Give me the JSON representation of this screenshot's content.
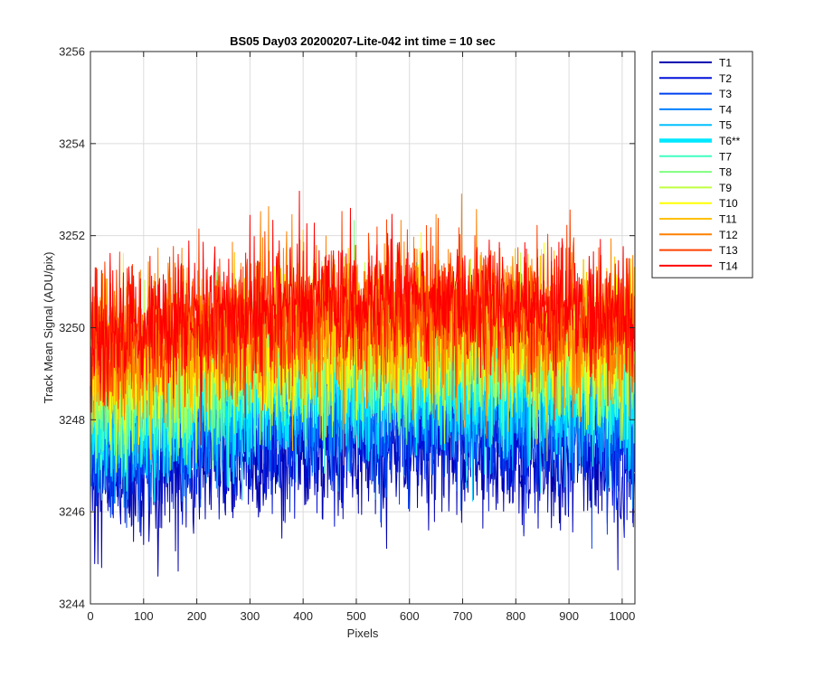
{
  "chart_data": {
    "type": "line",
    "title": "BS05 Day03 20200207-Lite-042 int time = 10 sec",
    "xlabel": "Pixels",
    "ylabel": "Track Mean Signal (ADU/pix)",
    "xlim": [
      0,
      1024
    ],
    "ylim": [
      3244,
      3256
    ],
    "xticks": [
      0,
      100,
      200,
      300,
      400,
      500,
      600,
      700,
      800,
      900,
      1000
    ],
    "yticks": [
      3244,
      3246,
      3248,
      3250,
      3252,
      3254,
      3256
    ],
    "grid": true,
    "legend_position": "outside-top-right",
    "series": [
      {
        "name": "T1",
        "color": "#0000b0",
        "base": 3246.6,
        "end": 3247.0,
        "amp": 1.0,
        "seed": 11,
        "highlight": false
      },
      {
        "name": "T2",
        "color": "#0010d8",
        "base": 3247.0,
        "end": 3247.4,
        "amp": 1.0,
        "seed": 23,
        "highlight": false
      },
      {
        "name": "T3",
        "color": "#0040f0",
        "base": 3247.3,
        "end": 3247.8,
        "amp": 1.0,
        "seed": 37,
        "highlight": false
      },
      {
        "name": "T4",
        "color": "#0080ff",
        "base": 3247.6,
        "end": 3248.1,
        "amp": 1.0,
        "seed": 41,
        "highlight": false
      },
      {
        "name": "T5",
        "color": "#00c0ff",
        "base": 3247.9,
        "end": 3248.4,
        "amp": 1.0,
        "seed": 53,
        "highlight": false
      },
      {
        "name": "T6**",
        "color": "#00e8ff",
        "base": 3248.1,
        "end": 3248.6,
        "amp": 1.0,
        "seed": 67,
        "highlight": true
      },
      {
        "name": "T7",
        "color": "#40ffc0",
        "base": 3248.3,
        "end": 3248.9,
        "amp": 1.0,
        "seed": 71,
        "highlight": false
      },
      {
        "name": "T8",
        "color": "#80ff80",
        "base": 3248.5,
        "end": 3249.1,
        "amp": 1.0,
        "seed": 83,
        "highlight": false
      },
      {
        "name": "T9",
        "color": "#c0ff40",
        "base": 3248.7,
        "end": 3249.3,
        "amp": 1.0,
        "seed": 97,
        "highlight": false
      },
      {
        "name": "T10",
        "color": "#ffff00",
        "base": 3248.9,
        "end": 3249.5,
        "amp": 1.0,
        "seed": 101,
        "highlight": false
      },
      {
        "name": "T11",
        "color": "#ffc000",
        "base": 3249.1,
        "end": 3249.7,
        "amp": 1.0,
        "seed": 113,
        "highlight": false
      },
      {
        "name": "T12",
        "color": "#ff8000",
        "base": 3249.4,
        "end": 3249.9,
        "amp": 1.1,
        "seed": 127,
        "highlight": false
      },
      {
        "name": "T13",
        "color": "#ff4000",
        "base": 3249.6,
        "end": 3250.1,
        "amp": 1.0,
        "seed": 131,
        "highlight": false
      },
      {
        "name": "T14",
        "color": "#ff0000",
        "base": 3249.8,
        "end": 3250.2,
        "amp": 0.9,
        "seed": 149,
        "highlight": false
      }
    ]
  }
}
